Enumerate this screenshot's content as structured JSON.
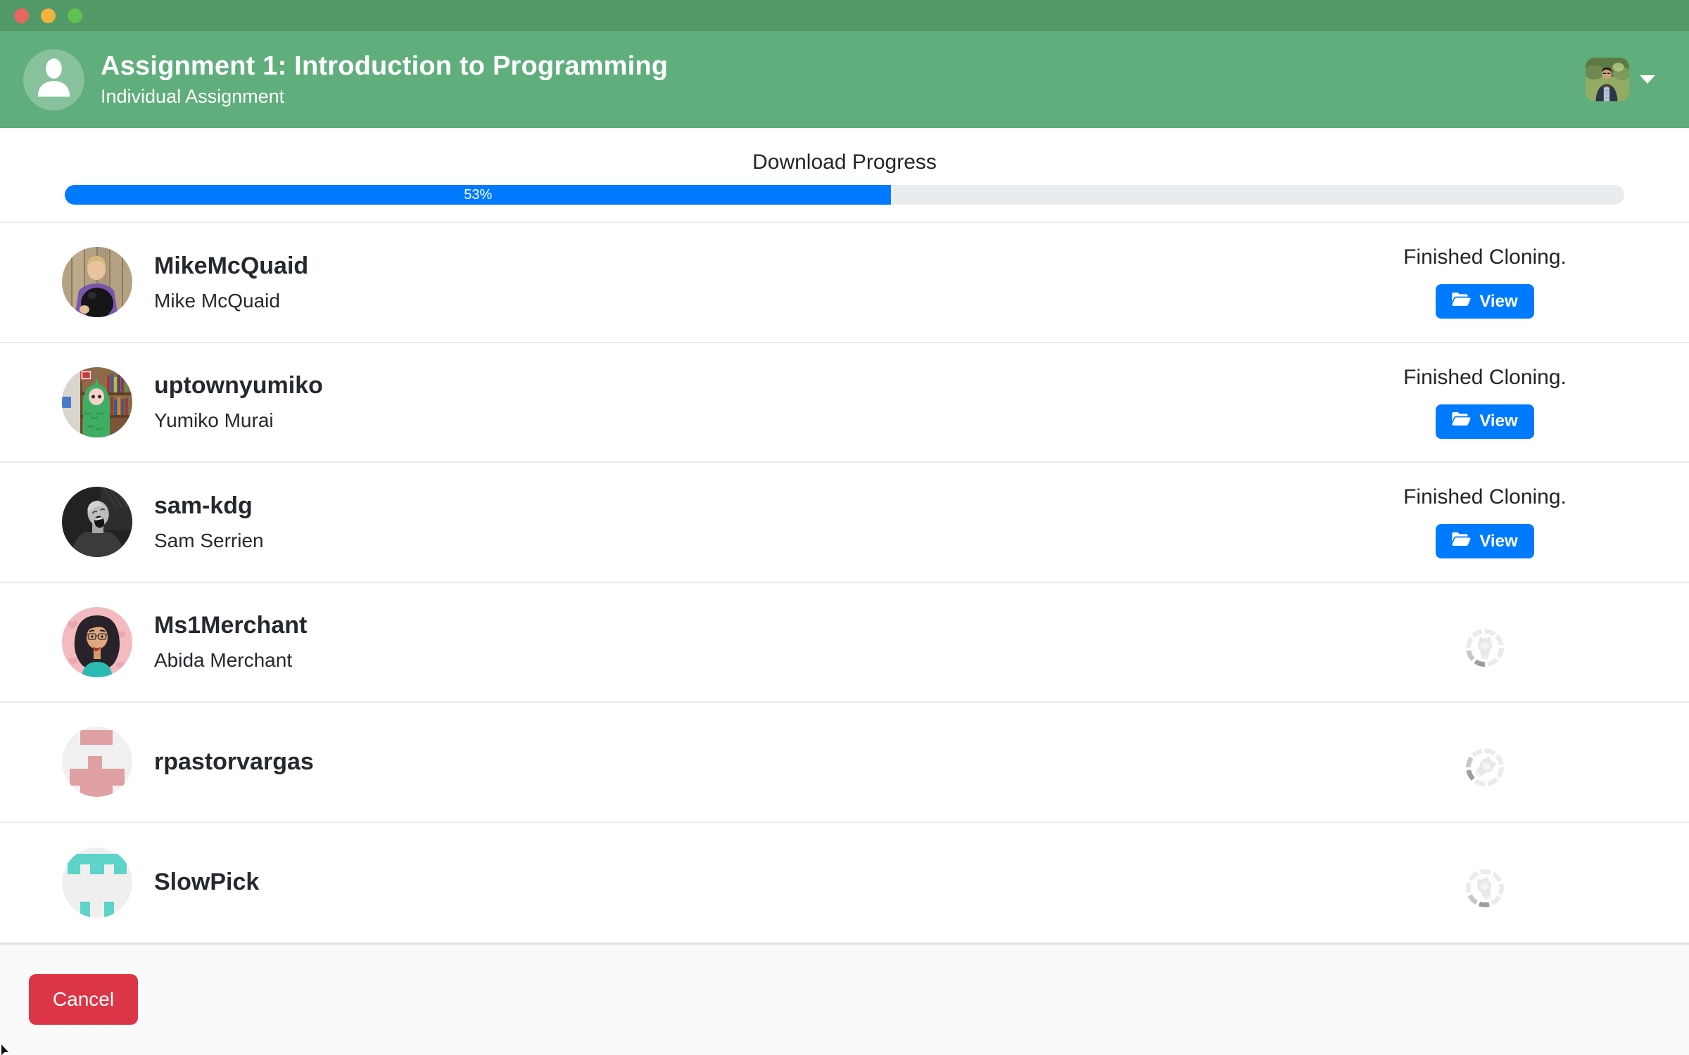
{
  "titlebar": {
    "buttons": [
      {
        "name": "close"
      },
      {
        "name": "minimize"
      },
      {
        "name": "zoom"
      }
    ]
  },
  "header": {
    "title": "Assignment 1: Introduction to Programming",
    "subtitle": "Individual Assignment",
    "left_icon": "person-icon",
    "right_control": "user-avatar-menu with chevron-down-icon",
    "colors": {
      "titlebar": "#529968",
      "header": "#5fae7c"
    }
  },
  "progress": {
    "heading": "Download Progress",
    "percent": 53,
    "percent_label": "53%",
    "bar_color": "#007bff",
    "track_color": "#e9ecef"
  },
  "students": [
    {
      "username": "MikeMcQuaid",
      "full_name": "Mike McQuaid",
      "status_text": "Finished Cloning.",
      "action_label": "View",
      "state": "finished"
    },
    {
      "username": "uptownyumiko",
      "full_name": "Yumiko Murai",
      "status_text": "Finished Cloning.",
      "action_label": "View",
      "state": "finished"
    },
    {
      "username": "sam-kdg",
      "full_name": "Sam Serrien",
      "status_text": "Finished Cloning.",
      "action_label": "View",
      "state": "finished"
    },
    {
      "username": "Ms1Merchant",
      "full_name": "Abida Merchant",
      "state": "cloning",
      "indicator": "github-octocat-spinner"
    },
    {
      "username": "rpastorvargas",
      "full_name": "",
      "state": "cloning",
      "indicator": "github-octocat-spinner"
    },
    {
      "username": "SlowPick",
      "full_name": "",
      "state": "cloning",
      "indicator": "github-octocat-spinner"
    }
  ],
  "footer": {
    "cancel_label": "Cancel",
    "cancel_color": "#dc3545"
  },
  "icons": {
    "view_button_icon": "open-folder-icon",
    "cloning_indicator": "github-octocat-spinner",
    "spinner_colors": {
      "light": "#ebebeb",
      "dark": "#9e9e9e",
      "mid": "#c6c6c6"
    }
  }
}
